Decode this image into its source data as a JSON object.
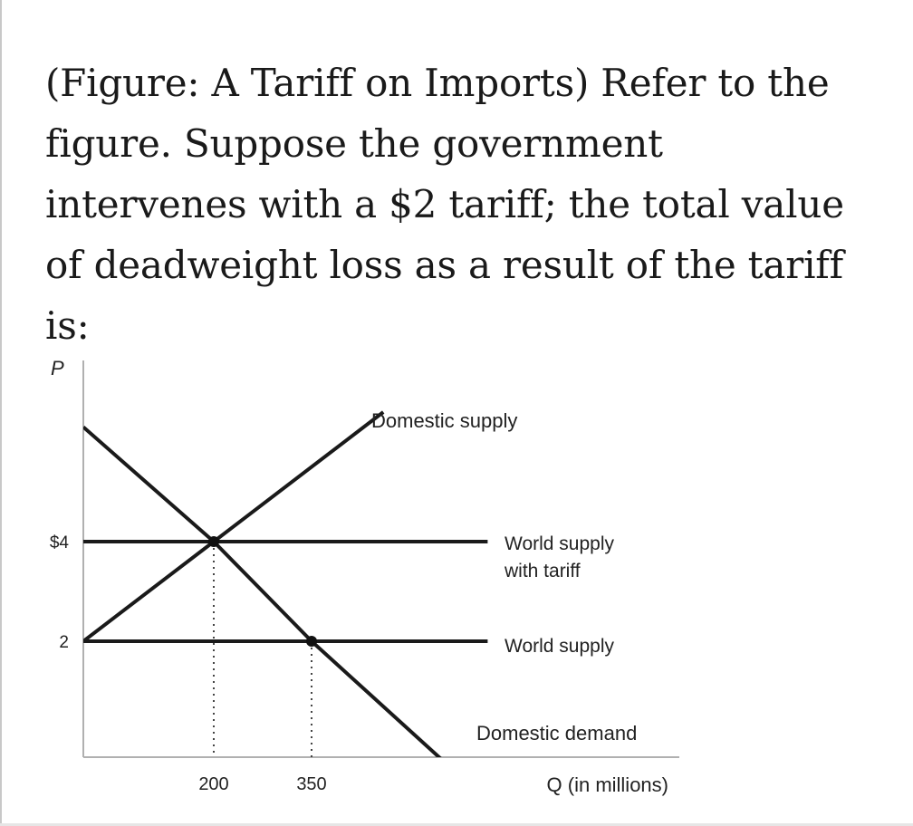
{
  "question": {
    "text": "(Figure: A Tariff on Imports) Refer to the figure. Suppose the government intervenes with a $2 tariff; the total value of deadweight loss as a result of the tariff is:"
  },
  "chart_data": {
    "type": "line",
    "ylabel": "P",
    "xlabel": "Q (in millions)",
    "xticks": [
      {
        "value": 200,
        "label": "200"
      },
      {
        "value": 350,
        "label": "350"
      }
    ],
    "yticks": [
      {
        "value": 4,
        "label": "$4"
      },
      {
        "value": 2,
        "label": "2"
      }
    ],
    "xlim": [
      0,
      860
    ],
    "ylim": [
      0,
      7.8
    ],
    "series": [
      {
        "name": "Domestic supply",
        "x": [
          0,
          200,
          460
        ],
        "y": [
          2,
          4,
          6.6
        ]
      },
      {
        "name": "World supply with tariff",
        "x": [
          0,
          620
        ],
        "y": [
          4,
          4
        ]
      },
      {
        "name": "World supply",
        "x": [
          0,
          620
        ],
        "y": [
          2,
          2
        ]
      },
      {
        "name": "Domestic demand",
        "x": [
          0,
          200,
          350,
          560
        ],
        "y": [
          6.3,
          4,
          2,
          -0.5
        ]
      }
    ],
    "points": [
      {
        "x": 200,
        "y": 4
      },
      {
        "x": 350,
        "y": 2
      }
    ],
    "guides": [
      {
        "x": 200,
        "from_y": 4
      },
      {
        "x": 350,
        "from_y": 2
      }
    ],
    "grid": false
  }
}
